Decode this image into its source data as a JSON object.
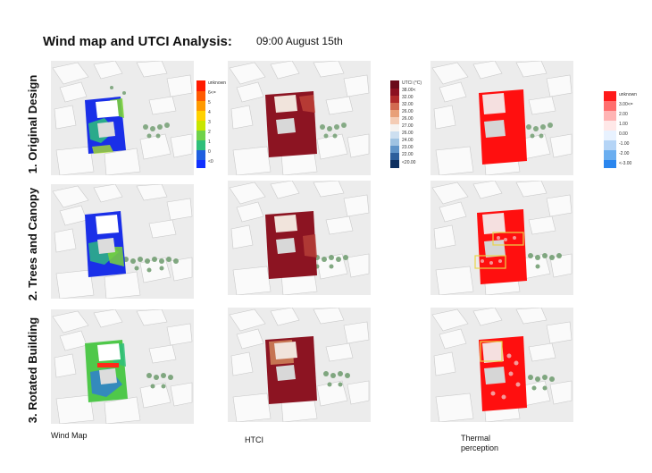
{
  "header": {
    "title": "Wind map and UTCI Analysis:",
    "time": "09:00 August 15th"
  },
  "rows": [
    {
      "label": "1. Original Design"
    },
    {
      "label": "2. Trees and Canopy"
    },
    {
      "label": "3. Rotated Building"
    }
  ],
  "columns": [
    {
      "label": "Wind Map"
    },
    {
      "label": "HTCI"
    },
    {
      "label": "Thermal perception"
    }
  ],
  "legends": {
    "wind": {
      "entries": [
        "unknown",
        "6<=",
        "5",
        "4",
        "3",
        "2",
        "1",
        "0",
        "<0"
      ],
      "colors": [
        "#ff1a00",
        "#ff5a00",
        "#ff9a00",
        "#ffd200",
        "#c8e600",
        "#6fd24a",
        "#2fbf7a",
        "#1f5fe0",
        "#1030ff"
      ]
    },
    "utci": {
      "entries": [
        "UTCI (°C)",
        "38.00<",
        "32.00",
        "32.00",
        "26.00",
        "26.00",
        "27.00",
        "26.00",
        "24.00",
        "23.00",
        "22.00",
        "<20.00"
      ],
      "colors": [
        "#6b0a1a",
        "#8b1020",
        "#b02a2a",
        "#d26a50",
        "#e8a078",
        "#f4ccb4",
        "#f6f3f0",
        "#cddff0",
        "#9fc3e2",
        "#5f94c8",
        "#2c5f9c",
        "#0e2f60"
      ]
    },
    "thermal": {
      "entries": [
        "unknown",
        "3.00<=",
        "2.00",
        "1.00",
        "0.00",
        "-1.00",
        "-2.00",
        "<-3.00"
      ],
      "colors": [
        "#ff1a1a",
        "#ff6e6e",
        "#ffb4b4",
        "#ffe8e8",
        "#e8f2ff",
        "#b4d4f6",
        "#6aaef0",
        "#2a86ee"
      ]
    }
  }
}
